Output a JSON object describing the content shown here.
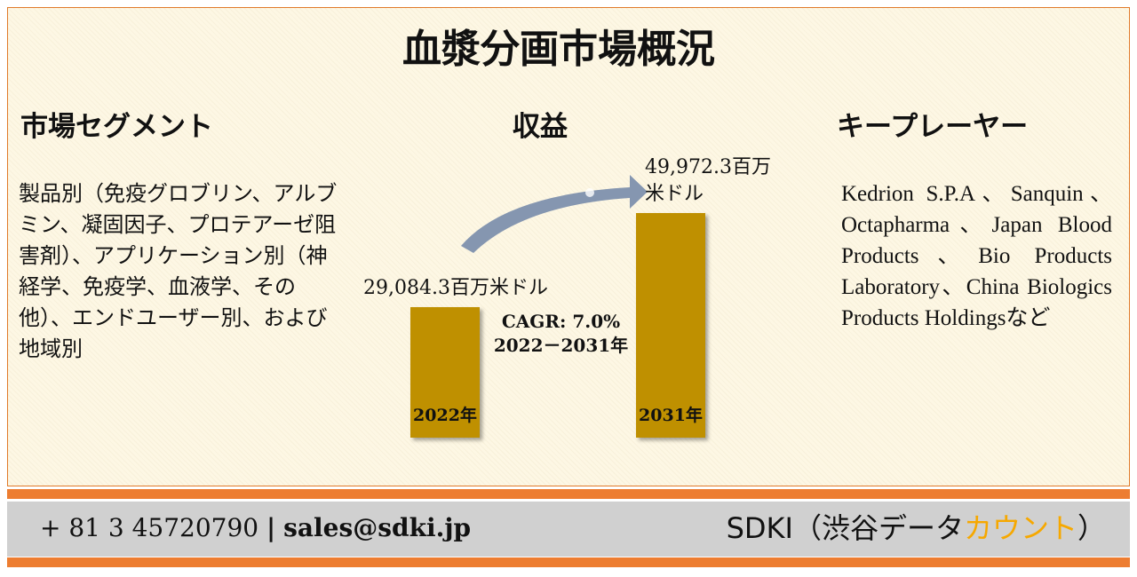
{
  "title": "血漿分画市場概況",
  "segments": {
    "heading": "市場セグメント",
    "text": "製品別（免疫グロブリン、アルブミン、凝固因子、プロテアーゼ阻害剤）、アプリケーション別（神経学、免疫学、血液学、その他）、エンドユーザー別、および地域別"
  },
  "revenue": {
    "heading": "収益",
    "bars": [
      {
        "label": "2022年",
        "value": 29084.3,
        "value_label": "29,084.3百万米ドル"
      },
      {
        "label": "2031年",
        "value": 49972.3,
        "value_label": "49,972.3百万米ドル"
      }
    ],
    "color": "#bf9000",
    "cagr": "CAGR: 7.0%",
    "period": "2022－2031年"
  },
  "players": {
    "heading": "キープレーヤー",
    "text": "Kedrion S.P.A、Sanquin、Octapharma、Japan Blood Products、Bio Products Laboratory、China Biologics Products Holdingsなど"
  },
  "footer": {
    "phone": "+ 81 3 45720790",
    "separator": "|",
    "email": "sales@sdki.jp",
    "brand": "SDKI（渋谷データ",
    "brand_highlight": "カウント",
    "brand_end": "）"
  }
}
